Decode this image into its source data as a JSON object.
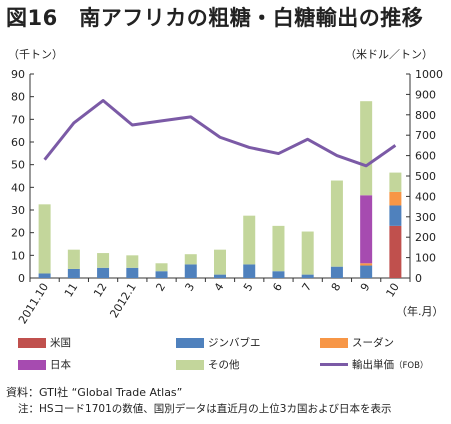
{
  "header": {
    "title": "図16　南アフリカの粗糖・白糖輸出の推移",
    "left_unit": "（千トン）",
    "right_unit": "（米ドル／トン）",
    "x_unit": "（年.月）"
  },
  "colors": {
    "us": "#c0504d",
    "zimbabwe": "#4f81bd",
    "sudan": "#f79646",
    "japan": "#a64bb0",
    "other": "#c3d69b",
    "price": "#7b5aa6"
  },
  "chart_data": {
    "type": "bar",
    "stacked": true,
    "categories": [
      "2011.10",
      "11",
      "12",
      "2012.1",
      "2",
      "3",
      "4",
      "5",
      "6",
      "7",
      "8",
      "9",
      "10"
    ],
    "series": [
      {
        "name": "米国",
        "key": "us",
        "axis": "left",
        "values": [
          0,
          0,
          0,
          0,
          0,
          0,
          0,
          0,
          0,
          0,
          0,
          0,
          23
        ]
      },
      {
        "name": "ジンバブエ",
        "key": "zimbabwe",
        "axis": "left",
        "values": [
          2,
          4,
          4.5,
          4.5,
          3,
          6,
          1.5,
          6,
          3,
          1.5,
          5,
          5.5,
          9
        ]
      },
      {
        "name": "スーダン",
        "key": "sudan",
        "axis": "left",
        "values": [
          0,
          0,
          0,
          0,
          0,
          0,
          0,
          0,
          0,
          0,
          0,
          1,
          6
        ]
      },
      {
        "name": "日本",
        "key": "japan",
        "axis": "left",
        "values": [
          0,
          0,
          0,
          0,
          0,
          0,
          0,
          0,
          0,
          0,
          0,
          30,
          0
        ]
      },
      {
        "name": "その他",
        "key": "other",
        "axis": "left",
        "values": [
          30.5,
          8.5,
          6.5,
          5.5,
          3.5,
          4.5,
          11,
          21.5,
          20,
          19,
          38,
          41.5,
          8.5
        ]
      }
    ],
    "line_series": {
      "name": "輸出単価（FOB）",
      "key": "price",
      "axis": "right",
      "values": [
        580,
        760,
        870,
        750,
        770,
        790,
        690,
        640,
        610,
        680,
        600,
        550,
        650
      ]
    },
    "left_axis": {
      "ylim": [
        0,
        90
      ],
      "ticks": [
        0,
        10,
        20,
        30,
        40,
        50,
        60,
        70,
        80,
        90
      ]
    },
    "right_axis": {
      "ylim": [
        0,
        1000
      ],
      "ticks": [
        0,
        100,
        200,
        300,
        400,
        500,
        600,
        700,
        800,
        900,
        1000
      ]
    },
    "grid": false,
    "legend_position": "bottom"
  },
  "legend": {
    "items": [
      {
        "label": "米国",
        "key": "us",
        "kind": "bar"
      },
      {
        "label": "ジンバブエ",
        "key": "zimbabwe",
        "kind": "bar"
      },
      {
        "label": "スーダン",
        "key": "sudan",
        "kind": "bar"
      },
      {
        "label": "日本",
        "key": "japan",
        "kind": "bar"
      },
      {
        "label": "その他",
        "key": "other",
        "kind": "bar"
      },
      {
        "label": "輸出単価",
        "sub": "（FOB）",
        "key": "price",
        "kind": "line"
      }
    ]
  },
  "footer": {
    "source": "資料：GTI社 “Global Trade Atlas”",
    "note": "注：HSコード1701の数値、国別データは直近月の上位3カ国および日本を表示"
  }
}
